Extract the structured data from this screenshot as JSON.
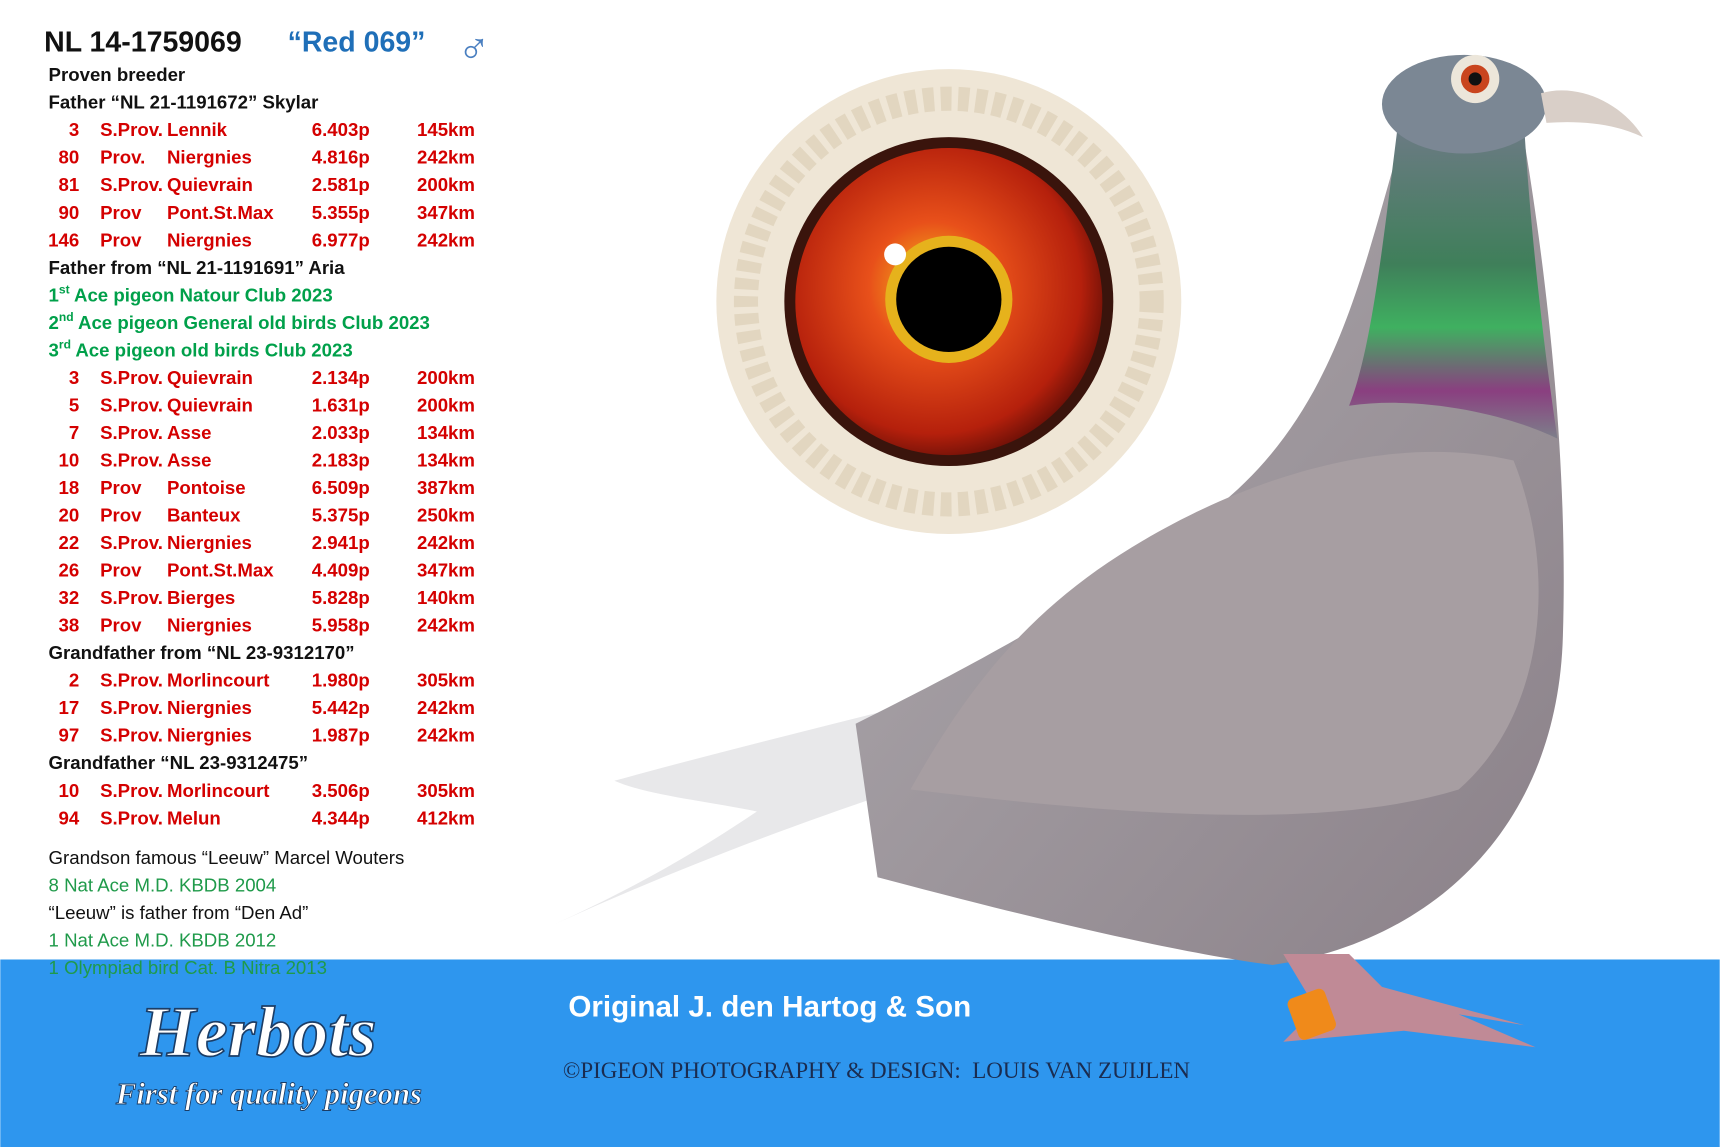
{
  "header": {
    "ring": "NL 14-1759069",
    "name": "“Red 069”",
    "sex": "♂"
  },
  "pedigree": [
    {
      "kind": "heading",
      "text": "Proven breeder"
    },
    {
      "kind": "heading",
      "text": "Father “NL 21-1191672” Skylar"
    },
    {
      "kind": "result",
      "cells": [
        "3",
        "S.Prov.",
        "Lennik",
        "6.403p",
        "145km"
      ]
    },
    {
      "kind": "result",
      "cells": [
        "80",
        "Prov.",
        "Niergnies",
        "4.816p",
        "242km"
      ]
    },
    {
      "kind": "result",
      "cells": [
        "81",
        "S.Prov.",
        "Quievrain",
        "2.581p",
        "200km"
      ]
    },
    {
      "kind": "result",
      "cells": [
        "90",
        "Prov",
        "Pont.St.Max",
        "5.355p",
        "347km"
      ]
    },
    {
      "kind": "result",
      "cells": [
        "146",
        "Prov",
        "Niergnies",
        "6.977p",
        "242km"
      ]
    },
    {
      "kind": "heading",
      "text": "Father from “NL 21-1191691” Aria"
    },
    {
      "kind": "award",
      "rank": "1",
      "sup": "st",
      "text": "Ace pigeon Natour Club 2023"
    },
    {
      "kind": "award",
      "rank": "2",
      "sup": "nd",
      "text": "Ace pigeon General old birds Club 2023"
    },
    {
      "kind": "award",
      "rank": "3",
      "sup": "rd",
      "text": "Ace pigeon old birds Club 2023"
    },
    {
      "kind": "result",
      "cells": [
        "3",
        "S.Prov.",
        "Quievrain",
        "2.134p",
        "200km"
      ]
    },
    {
      "kind": "result",
      "cells": [
        "5",
        "S.Prov.",
        "Quievrain",
        "1.631p",
        "200km"
      ]
    },
    {
      "kind": "result",
      "cells": [
        "7",
        "S.Prov.",
        "Asse",
        "2.033p",
        "134km"
      ]
    },
    {
      "kind": "result",
      "cells": [
        "10",
        "S.Prov.",
        "Asse",
        "2.183p",
        "134km"
      ]
    },
    {
      "kind": "result",
      "cells": [
        "18",
        "Prov",
        "Pontoise",
        "6.509p",
        "387km"
      ]
    },
    {
      "kind": "result",
      "cells": [
        "20",
        "Prov",
        "Banteux",
        "5.375p",
        "250km"
      ]
    },
    {
      "kind": "result",
      "cells": [
        "22",
        "S.Prov.",
        "Niergnies",
        "2.941p",
        "242km"
      ]
    },
    {
      "kind": "result",
      "cells": [
        "26",
        "Prov",
        "Pont.St.Max",
        "4.409p",
        "347km"
      ]
    },
    {
      "kind": "result",
      "cells": [
        "32",
        "S.Prov.",
        "Bierges",
        "5.828p",
        "140km"
      ]
    },
    {
      "kind": "result",
      "cells": [
        "38",
        "Prov",
        "Niergnies",
        "5.958p",
        "242km"
      ]
    },
    {
      "kind": "heading",
      "text": "Grandfather from “NL 23-9312170”"
    },
    {
      "kind": "result",
      "cells": [
        "2",
        "S.Prov.",
        "Morlincourt",
        "1.980p",
        "305km"
      ]
    },
    {
      "kind": "result",
      "cells": [
        "17",
        "S.Prov.",
        "Niergnies",
        "5.442p",
        "242km"
      ]
    },
    {
      "kind": "result",
      "cells": [
        "97",
        "S.Prov.",
        "Niergnies",
        "1.987p",
        "242km"
      ]
    },
    {
      "kind": "heading",
      "text": "Grandfather “NL 23-9312475”"
    },
    {
      "kind": "result",
      "cells": [
        "10",
        "S.Prov.",
        "Morlincourt",
        "3.506p",
        "305km"
      ]
    },
    {
      "kind": "result",
      "cells": [
        "94",
        "S.Prov.",
        "Melun",
        "4.344p",
        "412km"
      ]
    }
  ],
  "notes": [
    {
      "kind": "plain",
      "text": "Grandson famous “Leeuw” Marcel Wouters"
    },
    {
      "kind": "green",
      "text": "8 Nat Ace M.D. KBDB 2004"
    },
    {
      "kind": "plain",
      "text": "“Leeuw” is father from “Den Ad”"
    },
    {
      "kind": "green",
      "text": "1 Nat Ace M.D. KBDB 2012"
    },
    {
      "kind": "green",
      "text": "1 Olympiad bird Cat. B Nitra 2013"
    }
  ],
  "footer": {
    "logo": "Herbots",
    "tagline": "First for quality pigeons",
    "origin": "Original J. den Hartog & Son",
    "credit": "©PIGEON PHOTOGRAPHY & DESIGN:  LOUIS VAN ZUIJLEN"
  }
}
